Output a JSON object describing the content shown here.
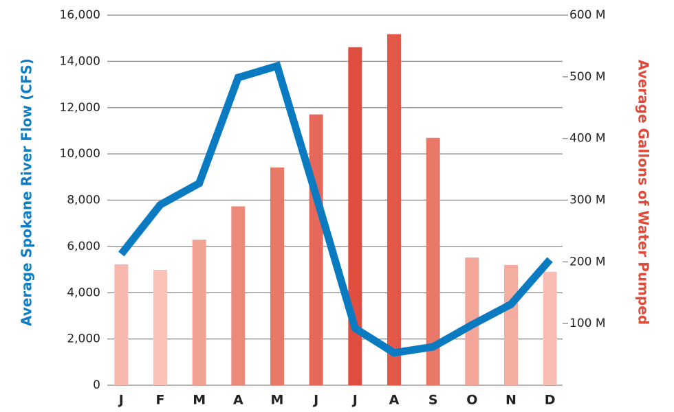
{
  "chart_data": {
    "type": "bar-line",
    "y_label": "Average Spokane River Flow (CFS)",
    "y2_label": "Average Gallons of Water Pumped",
    "categories": [
      "J",
      "F",
      "M",
      "A",
      "M",
      "J",
      "J",
      "A",
      "S",
      "O",
      "N",
      "D"
    ],
    "ylim": [
      0,
      16000
    ],
    "yticks": [
      0,
      {
        "value": 2000,
        "label": "2,000"
      },
      {
        "value": 4000,
        "label": "4,000"
      },
      {
        "value": 6000,
        "label": "6,000"
      },
      {
        "value": 8000,
        "label": "8,000"
      },
      {
        "value": 10000,
        "label": "10,000"
      },
      {
        "value": 12000,
        "label": "12,000"
      },
      {
        "value": 14000,
        "label": "14,000"
      },
      {
        "value": 16000,
        "label": "16,000"
      }
    ],
    "y2lim": [
      0,
      600
    ],
    "y2ticks": [
      {
        "value": 100,
        "label": "100 M"
      },
      {
        "value": 200,
        "label": "200 M"
      },
      {
        "value": 300,
        "label": "300 M"
      },
      {
        "value": 400,
        "label": "400 M"
      },
      {
        "value": 500,
        "label": "500 M"
      },
      {
        "value": 600,
        "label": "600 M"
      }
    ],
    "grid": true,
    "y_label_color": "#0f7dc2",
    "y2_label_color": "#e04a3a",
    "series": [
      {
        "type": "bar",
        "axis": "y2",
        "values": [
          196,
          187,
          236,
          290,
          353,
          439,
          548,
          569,
          401,
          207,
          195,
          184
        ],
        "colors": [
          "#f7b8ae",
          "#f9c1b8",
          "#f2a292",
          "#ec8a7a",
          "#e97967",
          "#e6685a",
          "#df4e3f",
          "#e4584a",
          "#e97868",
          "#f3a597",
          "#f5ad9f",
          "#f8bdb4"
        ]
      },
      {
        "type": "line",
        "color": "#0a7bc1",
        "values": [
          5670,
          7800,
          8730,
          13300,
          13800,
          8190,
          2460,
          1400,
          1660,
          2610,
          3500,
          5430
        ]
      }
    ]
  }
}
